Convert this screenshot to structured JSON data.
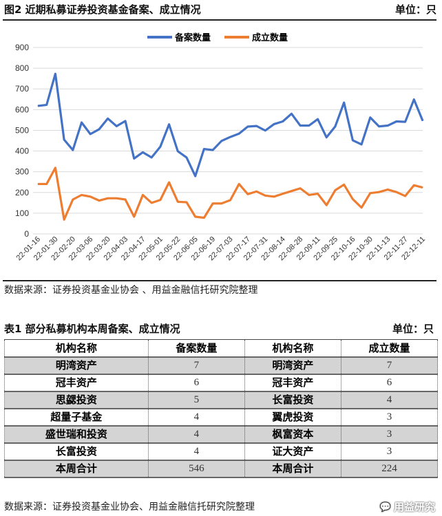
{
  "figure": {
    "title": "图2  近期私募证券投资基金备案、成立情况",
    "unit": "单位：只",
    "source": "数据来源：证券投资基金业协会 、用益金融信托研究院整理"
  },
  "chart_data": {
    "type": "line",
    "title": "",
    "legend_position": "top",
    "grid": "horizontal",
    "ylim": [
      0,
      900
    ],
    "yticks": [
      "0",
      "100",
      "200",
      "300",
      "400",
      "500",
      "600",
      "700",
      "800",
      "900"
    ],
    "x_tick_labels": [
      "22-01-16",
      "22-01-30",
      "22-02-20",
      "22-03-06",
      "22-03-20",
      "22-04-03",
      "22-04-17",
      "22-05-01",
      "22-05-22",
      "22-06-05",
      "22-06-19",
      "22-07-03",
      "22-07-17",
      "22-07-31",
      "22-08-14",
      "22-08-28",
      "22-09-11",
      "22-09-25",
      "22-10-16",
      "22-10-30",
      "22-11-13",
      "22-11-27",
      "22-12-11"
    ],
    "series": [
      {
        "name": "备案数量",
        "color": "#4472C4",
        "values": [
          618,
          623,
          773,
          455,
          405,
          538,
          482,
          505,
          557,
          520,
          545,
          364,
          394,
          369,
          421,
          529,
          399,
          369,
          279,
          410,
          405,
          449,
          468,
          484,
          518,
          521,
          499,
          530,
          543,
          580,
          523,
          523,
          554,
          466,
          519,
          634,
          452,
          432,
          562,
          519,
          523,
          543,
          541,
          649,
          546
        ]
      },
      {
        "name": "成立数量",
        "color": "#ED7D31",
        "values": [
          241,
          241,
          319,
          69,
          166,
          188,
          180,
          161,
          172,
          172,
          166,
          83,
          188,
          150,
          164,
          249,
          155,
          153,
          83,
          78,
          147,
          147,
          163,
          241,
          192,
          205,
          185,
          180,
          194,
          207,
          220,
          188,
          194,
          139,
          211,
          238,
          168,
          127,
          197,
          202,
          214,
          202,
          183,
          235,
          224
        ]
      }
    ]
  },
  "table": {
    "title": "表1  部分私募机构本周备案、成立情况",
    "unit": "单位：只",
    "headers": [
      "机构名称",
      "备案数量",
      "机构名称",
      "成立数量"
    ],
    "rows": [
      [
        "明湾资产",
        "7",
        "明湾资产",
        "7"
      ],
      [
        "冠丰资产",
        "6",
        "冠丰资产",
        "6"
      ],
      [
        "思勰投资",
        "5",
        "长富投资",
        "4"
      ],
      [
        "超量子基金",
        "4",
        "翼虎投资",
        "3"
      ],
      [
        "盛世瑞和投资",
        "4",
        "枫富资本",
        "3"
      ],
      [
        "长富投资",
        "4",
        "证大资产",
        "3"
      ],
      [
        "本周合计",
        "546",
        "本周合计",
        "224"
      ]
    ],
    "source": "数据来源：证券投资基金业协会、用益金融信托研究院整理"
  },
  "watermark": "用益研究"
}
